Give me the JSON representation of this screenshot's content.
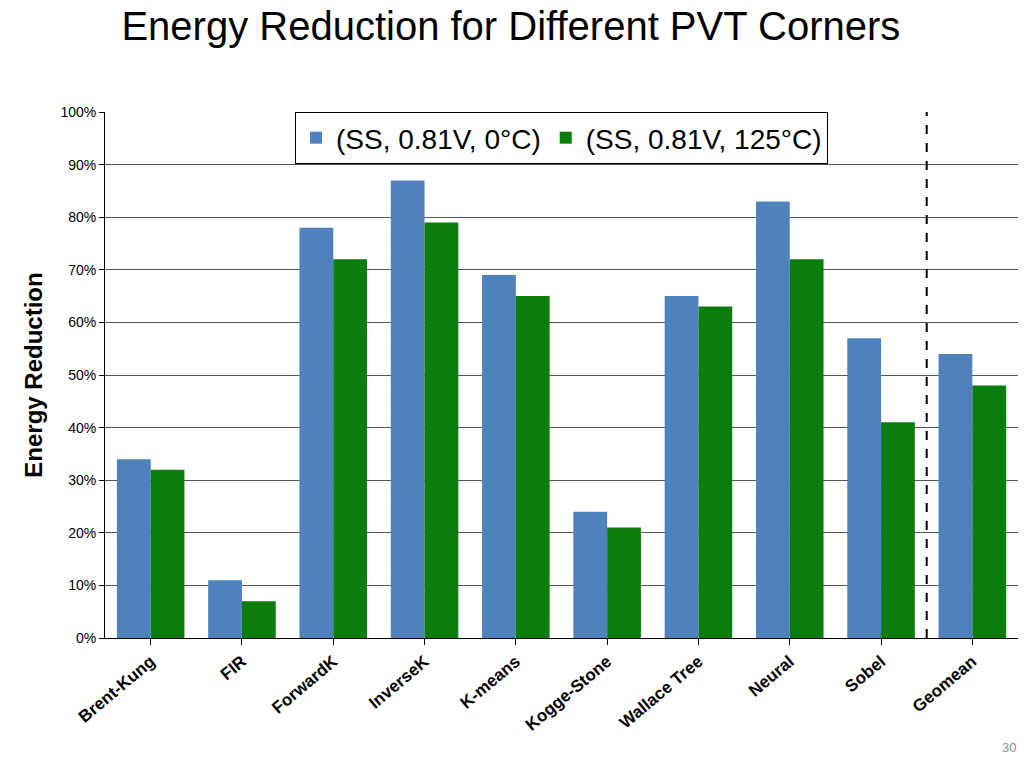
{
  "chart_data": {
    "type": "bar",
    "title": "Energy Reduction for Different PVT Corners",
    "y_label": "Energy Reduction",
    "categories": [
      "Brent-Kung",
      "FIR",
      "ForwardK",
      "InverseK",
      "K-means",
      "Kogge-Stone",
      "Wallace Tree",
      "Neural",
      "Sobel",
      "Geomean"
    ],
    "series": [
      {
        "name": "(SS, 0.81V, 0°C)",
        "color": "#4f81bd",
        "values": [
          34,
          11,
          78,
          87,
          69,
          24,
          65,
          83,
          57,
          54
        ]
      },
      {
        "name": "(SS, 0.81V, 125°C)",
        "color": "#0a7d0a",
        "values": [
          32,
          7,
          72,
          79,
          65,
          21,
          63,
          72,
          41,
          48
        ]
      }
    ],
    "ylim": [
      0,
      100
    ],
    "yticks": [
      {
        "value": 0,
        "label": "0%"
      },
      {
        "value": 10,
        "label": "10%"
      },
      {
        "value": 20,
        "label": "20%"
      },
      {
        "value": 30,
        "label": "30%"
      },
      {
        "value": 40,
        "label": "40%"
      },
      {
        "value": 50,
        "label": "50%"
      },
      {
        "value": 60,
        "label": "60%"
      },
      {
        "value": 70,
        "label": "70%"
      },
      {
        "value": 80,
        "label": "80%"
      },
      {
        "value": 90,
        "label": "90%"
      },
      {
        "value": 100,
        "label": "100%"
      }
    ],
    "grid": true,
    "legend": "top",
    "annotations": [
      "30"
    ]
  }
}
